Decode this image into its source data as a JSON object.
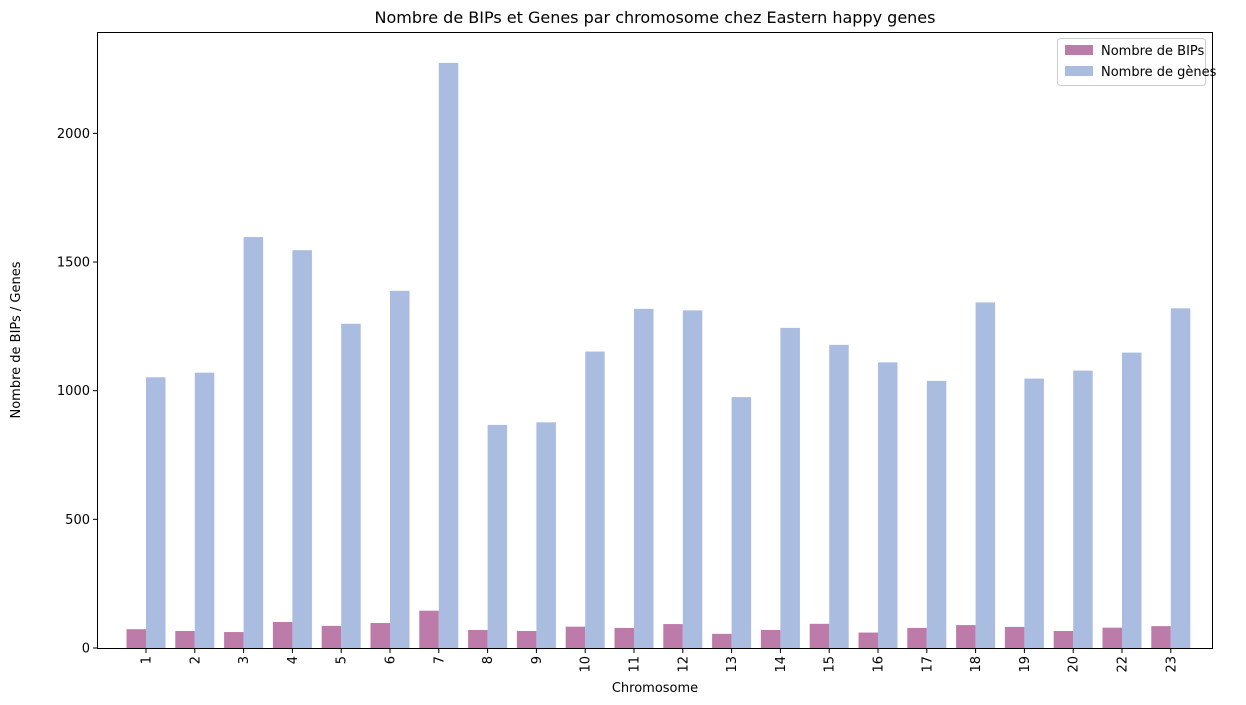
{
  "chart_data": {
    "type": "bar",
    "title": "Nombre de BIPs et Genes par chromosome chez Eastern happy genes",
    "xlabel": "Chromosome",
    "ylabel": "Nombre de BIPs / Genes",
    "categories": [
      "1",
      "2",
      "3",
      "4",
      "5",
      "6",
      "7",
      "8",
      "9",
      "10",
      "11",
      "12",
      "13",
      "14",
      "15",
      "16",
      "17",
      "18",
      "19",
      "20",
      "22",
      "23"
    ],
    "series": [
      {
        "name": "Nombre de BIPs",
        "color": "#bc7ba8",
        "values": [
          73,
          66,
          62,
          101,
          86,
          97,
          145,
          70,
          66,
          83,
          78,
          93,
          55,
          70,
          94,
          60,
          78,
          89,
          82,
          66,
          79,
          85
        ]
      },
      {
        "name": "Nombre de gènes",
        "color": "#abbce1",
        "values": [
          1052,
          1070,
          1597,
          1546,
          1260,
          1388,
          2274,
          867,
          877,
          1152,
          1318,
          1312,
          975,
          1244,
          1178,
          1110,
          1038,
          1343,
          1047,
          1078,
          1148,
          1320
        ]
      }
    ],
    "ylim": [
      0,
      2390
    ],
    "yticks": [
      0,
      500,
      1000,
      1500,
      2000
    ],
    "legend_position": "top-right",
    "grid": false
  }
}
